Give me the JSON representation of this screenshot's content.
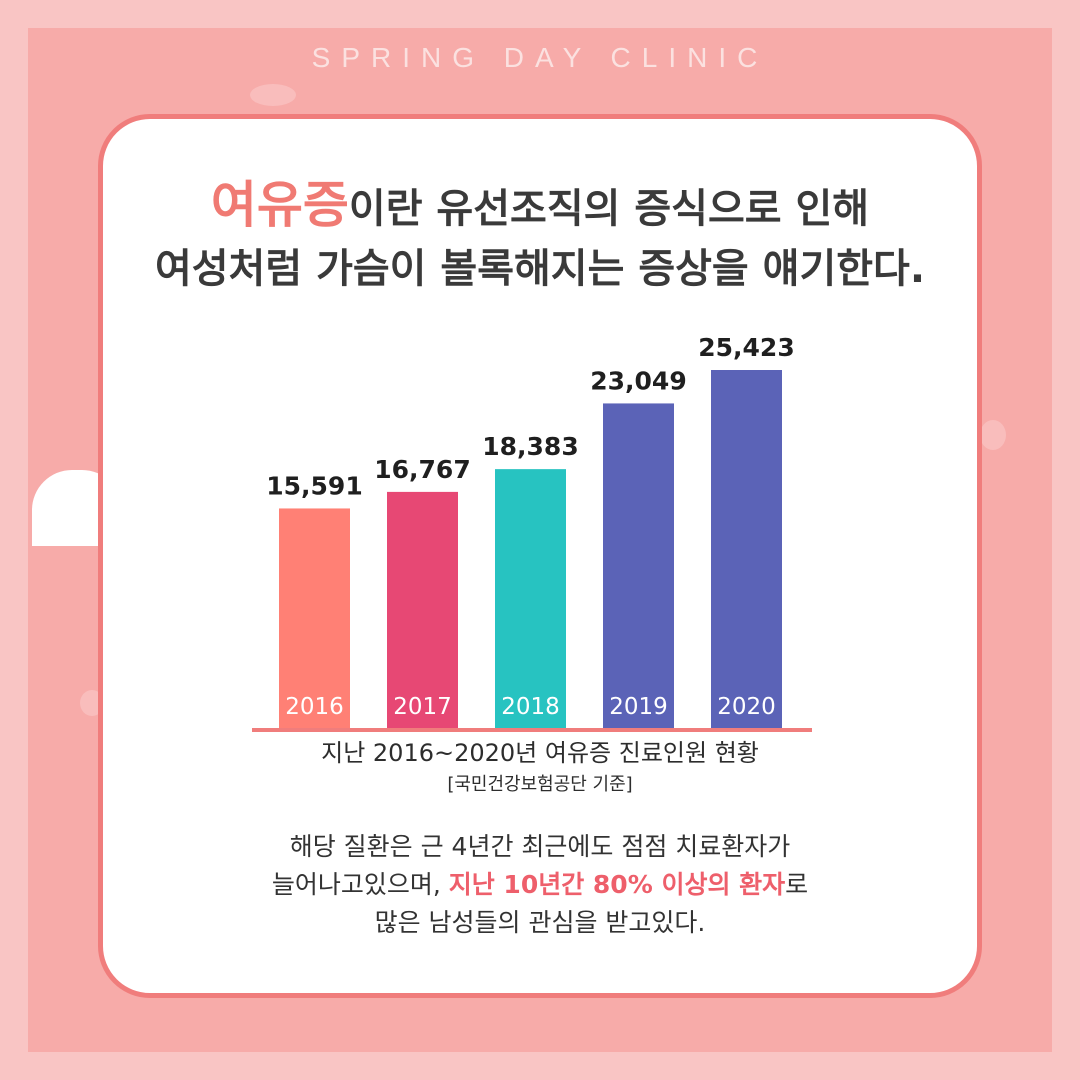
{
  "brand": "SPRING DAY CLINIC",
  "headline": {
    "accent": "여유증",
    "line1_rest": "이란 유선조직의 증식으로 인해",
    "line2": "여성처럼 가슴이 볼록해지는 증상을 얘기한다."
  },
  "chart_data": {
    "type": "bar",
    "categories": [
      "2016",
      "2017",
      "2018",
      "2019",
      "2020"
    ],
    "values": [
      15591,
      16767,
      18383,
      23049,
      25423
    ],
    "value_labels": [
      "15,591",
      "16,767",
      "18,383",
      "23,049",
      "25,423"
    ],
    "colors": [
      "#ff8075",
      "#e74874",
      "#27c3c1",
      "#5b63b7",
      "#5b63b7"
    ],
    "baseline_color": "#f07d7c",
    "title": "지난 2016~2020년 여유증 진료인원 현황",
    "subtitle": "[국민건강보험공단 기준]",
    "xlabel": "",
    "ylabel": "",
    "ylim": [
      0,
      25423
    ],
    "grid": false
  },
  "body": {
    "line1": "해당 질환은 근 4년간 최근에도 점점 치료환자가",
    "line2_start": "늘어나고있으며, ",
    "line2_highlight": "지난 10년간 80% 이상의 환자",
    "line2_end": "로",
    "line3": "많은 남성들의 관심을 받고있다."
  },
  "colors": {
    "background": "#f7aba9",
    "card_border": "#f07d7c",
    "accent": "#f07a73",
    "highlight": "#ee5f6b"
  }
}
